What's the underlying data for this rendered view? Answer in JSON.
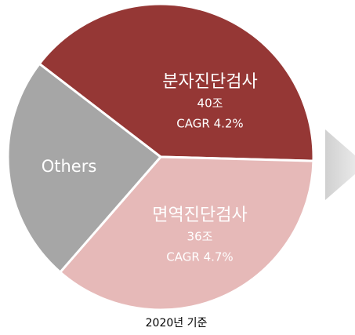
{
  "chart_data": {
    "type": "pie",
    "categories": [
      "분자진단검사",
      "면역진단검사",
      "Others"
    ],
    "values": [
      40,
      36,
      24
    ],
    "value_labels": [
      "40조",
      "36조",
      null
    ],
    "cagr_labels": [
      "CAGR 4.2%",
      "CAGR 4.7%",
      null
    ],
    "colors": [
      "#953735",
      "#e6b9b8",
      "#a6a6a6"
    ],
    "footnote": "2020년 기준"
  }
}
